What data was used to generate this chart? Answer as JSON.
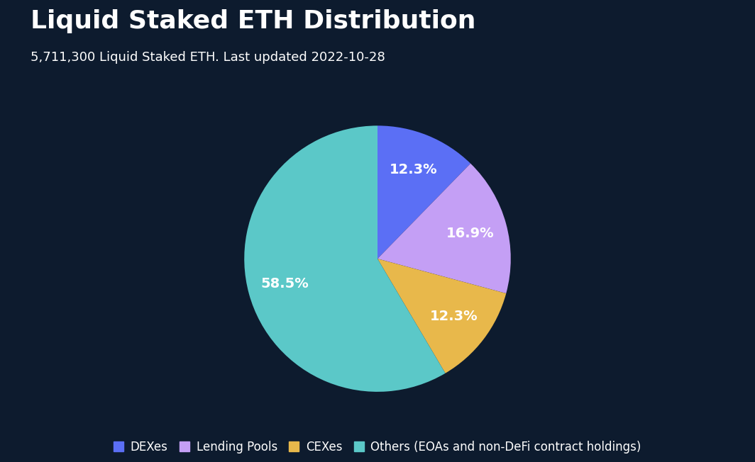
{
  "title": "Liquid Staked ETH Distribution",
  "subtitle": "5,711,300 Liquid Staked ETH. Last updated 2022-10-28",
  "background_color": "#0d1b2e",
  "slices": [
    {
      "label": "DEXes",
      "value": 12.3,
      "color": "#5b6ff5"
    },
    {
      "label": "Lending Pools",
      "value": 16.9,
      "color": "#c49ff5"
    },
    {
      "label": "CEXes",
      "value": 12.3,
      "color": "#e8b84b"
    },
    {
      "label": "Others (EOAs and non-DeFi contract holdings)",
      "value": 58.5,
      "color": "#5bc8c8"
    }
  ],
  "text_color": "#ffffff",
  "title_fontsize": 26,
  "subtitle_fontsize": 13,
  "label_fontsize": 14,
  "legend_fontsize": 12,
  "startangle": 90,
  "pctdistance": 0.72
}
